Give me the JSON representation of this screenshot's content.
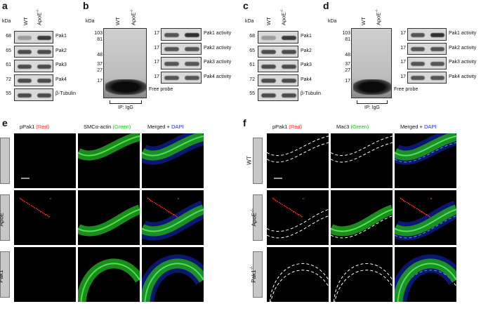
{
  "panels": {
    "a": {
      "label": "a",
      "kda": "kDa",
      "lanes": [
        "WT",
        "ApoE"
      ],
      "lane_sup": "-/-",
      "rows": [
        {
          "mw": "68",
          "name": "Pak1"
        },
        {
          "mw": "65",
          "name": "Pak2"
        },
        {
          "mw": "61",
          "name": "Pak3"
        },
        {
          "mw": "72",
          "name": "Pak4"
        },
        {
          "mw": "55",
          "name": "β-Tubulin"
        }
      ]
    },
    "b": {
      "label": "b",
      "kda": "kDa",
      "lanes": [
        "WT",
        "ApoE"
      ],
      "lane_sup": "-/-",
      "markers": [
        "103",
        "81",
        "48",
        "37",
        "27",
        "17"
      ],
      "probe": "Free probe",
      "ip": "IP: IgG",
      "activity_mw": "17",
      "activity": [
        "Pak1 activity",
        "Pak2 activity",
        "Pak3 activity",
        "Pak4 activity"
      ]
    },
    "c": {
      "label": "c",
      "kda": "kDa",
      "lanes": [
        "WT",
        "ApoE"
      ],
      "lane_sup": "-/-",
      "rows": [
        {
          "mw": "68",
          "name": "Pak1"
        },
        {
          "mw": "65",
          "name": "Pak2"
        },
        {
          "mw": "61",
          "name": "Pak3"
        },
        {
          "mw": "72",
          "name": "Pak4"
        },
        {
          "mw": "55",
          "name": "β-Tubulin"
        }
      ]
    },
    "d": {
      "label": "d",
      "kda": "kDa",
      "lanes": [
        "WT",
        "ApoE"
      ],
      "lane_sup": "-/-",
      "markers": [
        "103",
        "81",
        "48",
        "37",
        "27",
        "17"
      ],
      "probe": "Free probe",
      "ip": "IP: IgG",
      "activity_mw": "17",
      "activity": [
        "Pak1 activity",
        "Pak2 activity",
        "Pak3 activity",
        "Pak4 activity"
      ]
    },
    "e": {
      "label": "e",
      "cols": [
        {
          "main": "pPak1 ",
          "colored": "(Red)",
          "color": "red"
        },
        {
          "main": "SMCα-actin ",
          "colored": "(Green)",
          "color": "green"
        },
        {
          "main": "Merged + ",
          "colored": "DAPI",
          "color": "blue"
        }
      ],
      "rows": [
        "WT",
        "ApoE",
        "Pak1"
      ],
      "sup": "-/-"
    },
    "f": {
      "label": "f",
      "cols": [
        {
          "main": "pPak1 ",
          "colored": "(Red)",
          "color": "red"
        },
        {
          "main": "Mac3 ",
          "colored": "(Green)",
          "color": "green"
        },
        {
          "main": "Merged + ",
          "colored": "DAPI",
          "color": "blue"
        }
      ],
      "rows": [
        "WT",
        "ApoE",
        "Pak1"
      ],
      "sup": "-/-"
    }
  }
}
